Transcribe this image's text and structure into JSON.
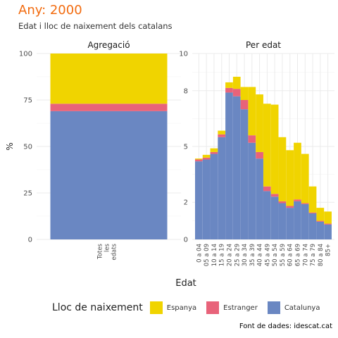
{
  "title": "Any: 2000",
  "subtitle": "Edat i lloc de naixement dels catalans",
  "caption": "Font de dades: idescat.cat",
  "colors": {
    "Espanya": "#f0d400",
    "Estranger": "#e8637a",
    "Catalunya": "#6a87c2",
    "title": "#f26b0f"
  },
  "legend": {
    "title": "Lloc de naixement",
    "items": [
      {
        "label": "Espanya",
        "color": "#f0d400"
      },
      {
        "label": "Estranger",
        "color": "#e8637a"
      },
      {
        "label": "Catalunya",
        "color": "#6a87c2"
      }
    ]
  },
  "chart_data": [
    {
      "type": "bar",
      "facet": "Agregació",
      "categories": [
        "Totes les edats"
      ],
      "stacked": true,
      "series": [
        {
          "name": "Catalunya",
          "values": [
            69
          ]
        },
        {
          "name": "Estranger",
          "values": [
            4
          ]
        },
        {
          "name": "Espanya",
          "values": [
            27
          ]
        }
      ],
      "ylabel": "%",
      "ylim": [
        0,
        100
      ],
      "yticks": [
        "0",
        "25",
        "50",
        "75",
        "100"
      ],
      "grid": true
    },
    {
      "type": "bar",
      "facet": "Per edat",
      "categories": [
        "0 a 04",
        "05 a 09",
        "10 a 14",
        "15 a 19",
        "20 a 24",
        "25 a 29",
        "30 a 34",
        "35 a 39",
        "40 a 44",
        "45 a 49",
        "50 a 54",
        "55 a 59",
        "60 a 64",
        "65 a 69",
        "70 a 74",
        "75 a 79",
        "80 a 84",
        "85+"
      ],
      "stacked": true,
      "series": [
        {
          "name": "Catalunya",
          "values": [
            4.2,
            4.3,
            4.6,
            5.5,
            7.9,
            7.7,
            7.0,
            5.2,
            4.35,
            2.6,
            2.3,
            1.95,
            1.7,
            2.05,
            1.9,
            1.4,
            0.95,
            0.8
          ]
        },
        {
          "name": "Estranger",
          "values": [
            0.1,
            0.1,
            0.1,
            0.15,
            0.25,
            0.4,
            0.5,
            0.4,
            0.35,
            0.25,
            0.15,
            0.1,
            0.1,
            0.1,
            0.05,
            0.05,
            0.05,
            0.05
          ]
        },
        {
          "name": "Espanya",
          "values": [
            0.05,
            0.15,
            0.2,
            0.2,
            0.3,
            0.65,
            0.7,
            2.6,
            3.1,
            4.45,
            4.8,
            3.45,
            3.0,
            3.05,
            2.65,
            1.4,
            0.7,
            0.65
          ]
        }
      ],
      "xlabel": "Edat",
      "ylim": [
        0,
        10
      ],
      "yticks": [
        "0",
        "2",
        "5",
        "8",
        "10"
      ],
      "grid": true
    }
  ]
}
